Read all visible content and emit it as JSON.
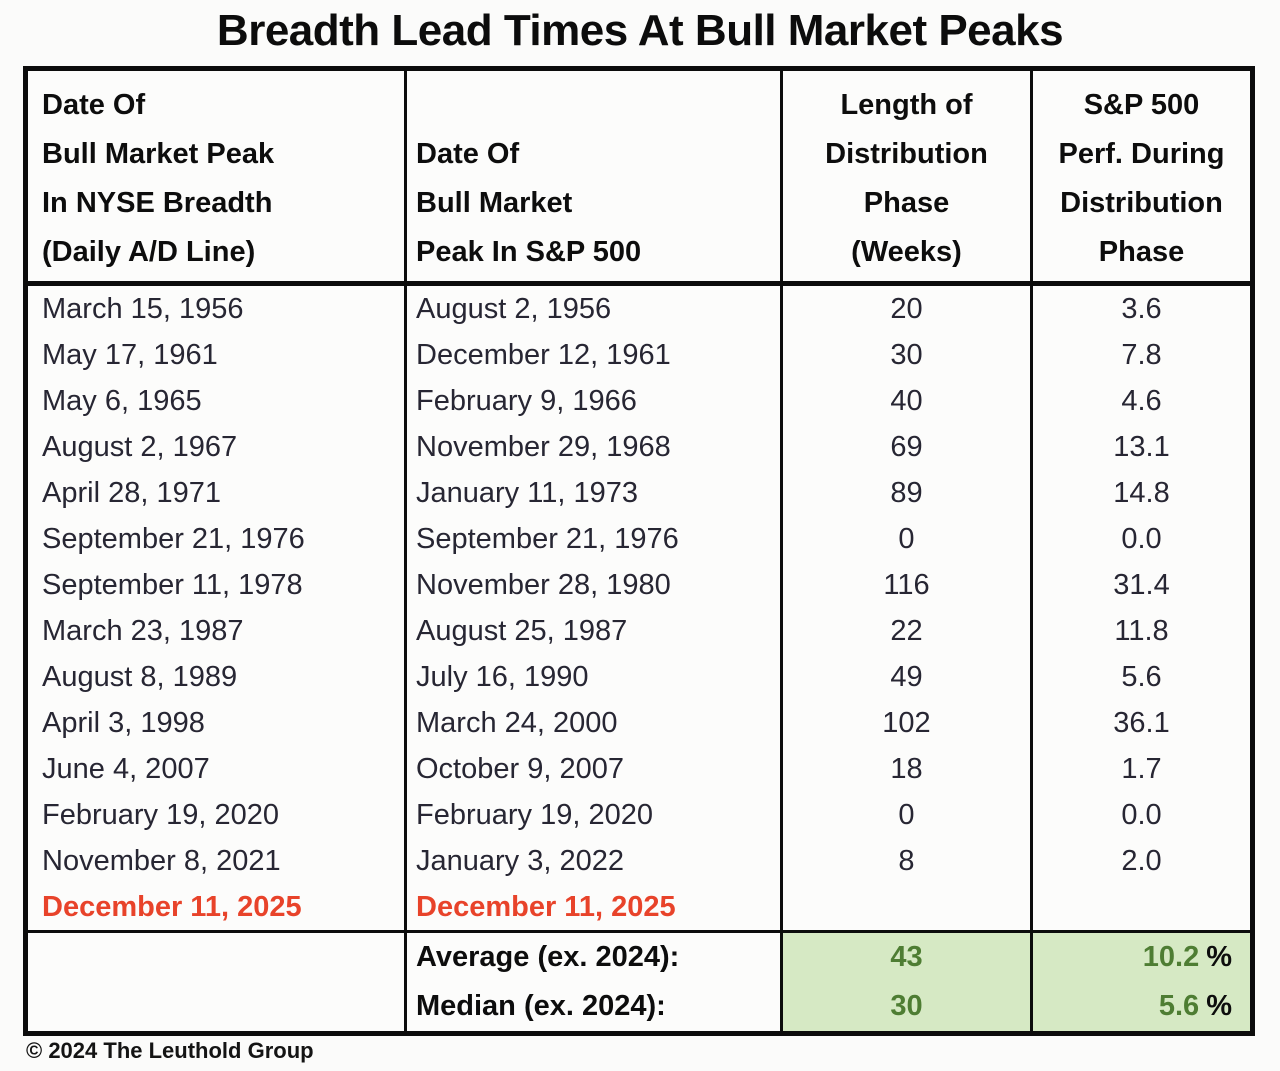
{
  "title": "Breadth Lead Times At Bull Market Peaks",
  "footer": {
    "copyright": "© 2024 The Leuthold Group"
  },
  "colors": {
    "highlight_red": "#e8432a",
    "summary_green_bg": "#d6e9c4",
    "summary_green_text": "#4e7d33",
    "border": "#0c0c0c",
    "data_text": "#272633"
  },
  "table": {
    "headers": [
      {
        "text": "Date Of\nBull Market Peak\nIn NYSE Breadth\n(Daily A/D Line)"
      },
      {
        "text": "Date Of\nBull Market\nPeak In S&P 500"
      },
      {
        "text": "Length of\nDistribution\nPhase\n(Weeks)"
      },
      {
        "text": "S&P 500\nPerf. During\nDistribution\nPhase"
      }
    ],
    "rows": [
      {
        "breadth_peak": "March 15, 1956",
        "sp500_peak": "August 2, 1956",
        "weeks": "20",
        "perf": "3.6",
        "highlight": false
      },
      {
        "breadth_peak": "May 17, 1961",
        "sp500_peak": "December 12, 1961",
        "weeks": "30",
        "perf": "7.8",
        "highlight": false
      },
      {
        "breadth_peak": "May 6, 1965",
        "sp500_peak": "February 9, 1966",
        "weeks": "40",
        "perf": "4.6",
        "highlight": false
      },
      {
        "breadth_peak": "August 2, 1967",
        "sp500_peak": "November 29, 1968",
        "weeks": "69",
        "perf": "13.1",
        "highlight": false
      },
      {
        "breadth_peak": "April 28, 1971",
        "sp500_peak": "January 11, 1973",
        "weeks": "89",
        "perf": "14.8",
        "highlight": false
      },
      {
        "breadth_peak": "September 21, 1976",
        "sp500_peak": "September 21, 1976",
        "weeks": "0",
        "perf": "0.0",
        "highlight": false
      },
      {
        "breadth_peak": "September 11, 1978",
        "sp500_peak": "November 28, 1980",
        "weeks": "116",
        "perf": "31.4",
        "highlight": false
      },
      {
        "breadth_peak": "March 23, 1987",
        "sp500_peak": "August 25, 1987",
        "weeks": "22",
        "perf": "11.8",
        "highlight": false
      },
      {
        "breadth_peak": "August 8, 1989",
        "sp500_peak": "July 16, 1990",
        "weeks": "49",
        "perf": "5.6",
        "highlight": false
      },
      {
        "breadth_peak": "April 3, 1998",
        "sp500_peak": "March 24, 2000",
        "weeks": "102",
        "perf": "36.1",
        "highlight": false
      },
      {
        "breadth_peak": "June 4, 2007",
        "sp500_peak": "October 9, 2007",
        "weeks": "18",
        "perf": "1.7",
        "highlight": false
      },
      {
        "breadth_peak": "February 19, 2020",
        "sp500_peak": "February 19, 2020",
        "weeks": "0",
        "perf": "0.0",
        "highlight": false
      },
      {
        "breadth_peak": "November 8, 2021",
        "sp500_peak": "January 3, 2022",
        "weeks": "8",
        "perf": "2.0",
        "highlight": false
      },
      {
        "breadth_peak": "December 11, 2025",
        "sp500_peak": "December 11, 2025",
        "weeks": "",
        "perf": "",
        "highlight": true
      }
    ],
    "summary": [
      {
        "label": "Average (ex. 2024):",
        "weeks": "43",
        "perf": "10.2",
        "pct": "%"
      },
      {
        "label": "Median (ex. 2024):",
        "weeks": "30",
        "perf": "5.6",
        "pct": "%"
      }
    ]
  },
  "chart_data": {
    "type": "table",
    "title": "Breadth Lead Times At Bull Market Peaks",
    "columns": [
      "Date Of Bull Market Peak In NYSE Breadth (Daily A/D Line)",
      "Date Of Bull Market Peak In S&P 500",
      "Length of Distribution Phase (Weeks)",
      "S&P 500 Perf. During Distribution Phase"
    ],
    "rows": [
      [
        "March 15, 1956",
        "August 2, 1956",
        20,
        3.6
      ],
      [
        "May 17, 1961",
        "December 12, 1961",
        30,
        7.8
      ],
      [
        "May 6, 1965",
        "February 9, 1966",
        40,
        4.6
      ],
      [
        "August 2, 1967",
        "November 29, 1968",
        69,
        13.1
      ],
      [
        "April 28, 1971",
        "January 11, 1973",
        89,
        14.8
      ],
      [
        "September 21, 1976",
        "September 21, 1976",
        0,
        0.0
      ],
      [
        "September 11, 1978",
        "November 28, 1980",
        116,
        31.4
      ],
      [
        "March 23, 1987",
        "August 25, 1987",
        22,
        11.8
      ],
      [
        "August 8, 1989",
        "July 16, 1990",
        49,
        5.6
      ],
      [
        "April 3, 1998",
        "March 24, 2000",
        102,
        36.1
      ],
      [
        "June 4, 2007",
        "October 9, 2007",
        18,
        1.7
      ],
      [
        "February 19, 2020",
        "February 19, 2020",
        0,
        0.0
      ],
      [
        "November 8, 2021",
        "January 3, 2022",
        8,
        2.0
      ],
      [
        "December 11, 2025",
        "December 11, 2025",
        null,
        null
      ]
    ],
    "highlighted_row_index": 13,
    "summary_rows": [
      [
        "Average (ex. 2024):",
        43,
        "10.2%"
      ],
      [
        "Median (ex. 2024):",
        30,
        "5.6%"
      ]
    ]
  }
}
